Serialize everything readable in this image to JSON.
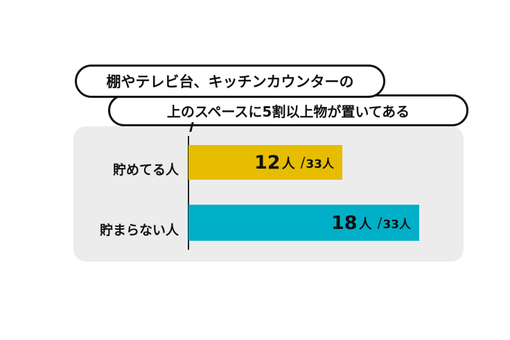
{
  "chart_data": {
    "type": "bar",
    "orientation": "horizontal",
    "title": [
      "棚やテレビ台、キッチンカウンターの",
      "上のスペースに5割以上物が置いてある"
    ],
    "categories": [
      "貯めてる人",
      "貯まらない人"
    ],
    "values": [
      12,
      18
    ],
    "total": 33,
    "unit": "人",
    "value_labels": [
      {
        "value": "12",
        "unit": "人",
        "separator": "/",
        "total": "33人"
      },
      {
        "value": "18",
        "unit": "人",
        "separator": "/",
        "total": "33人"
      }
    ],
    "xlim": [
      0,
      20
    ],
    "colors": [
      "#e6bd00",
      "#00b0c8"
    ],
    "panel_color": "#ececec"
  }
}
